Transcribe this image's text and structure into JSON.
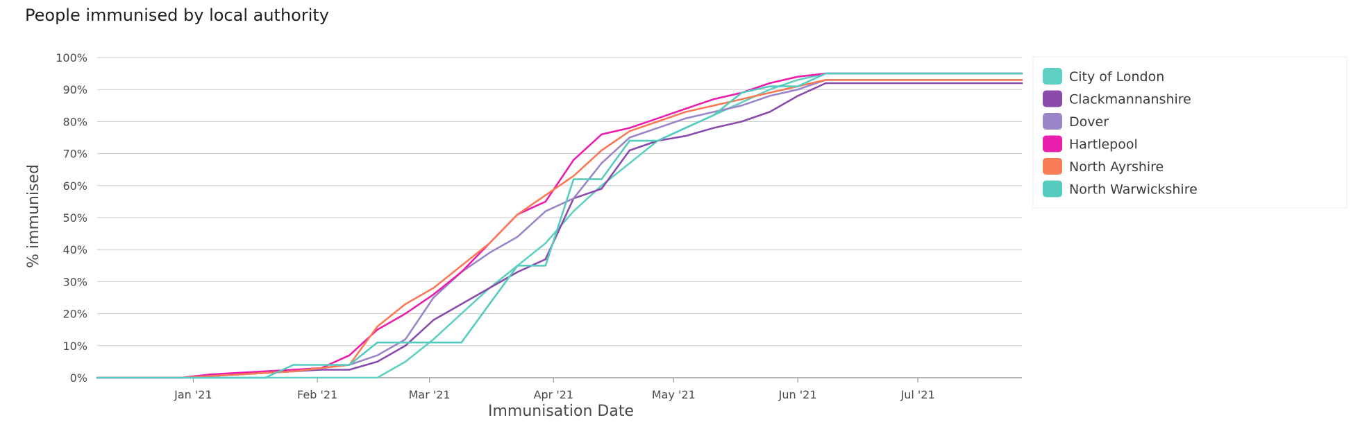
{
  "chart_data": {
    "type": "line",
    "title": "People immunised by local authority",
    "xlabel": "Immunisation Date",
    "ylabel": "% immunised",
    "x": [
      "2020-12-08",
      "2020-12-15",
      "2020-12-22",
      "2020-12-29",
      "2021-01-05",
      "2021-01-12",
      "2021-01-19",
      "2021-01-26",
      "2021-02-02",
      "2021-02-09",
      "2021-02-16",
      "2021-02-23",
      "2021-03-02",
      "2021-03-09",
      "2021-03-16",
      "2021-03-23",
      "2021-03-30",
      "2021-04-06",
      "2021-04-13",
      "2021-04-20",
      "2021-04-27",
      "2021-05-04",
      "2021-05-11",
      "2021-05-18",
      "2021-05-25",
      "2021-06-01",
      "2021-06-08",
      "2021-06-15",
      "2021-06-22",
      "2021-06-29",
      "2021-07-06",
      "2021-07-13",
      "2021-07-20",
      "2021-07-27"
    ],
    "xlim": [
      "2020-12-08",
      "2021-07-27"
    ],
    "x_ticks": [
      {
        "date": "2021-01-01",
        "label": "Jan '21"
      },
      {
        "date": "2021-02-01",
        "label": "Feb '21"
      },
      {
        "date": "2021-03-01",
        "label": "Mar '21"
      },
      {
        "date": "2021-04-01",
        "label": "Apr '21"
      },
      {
        "date": "2021-05-01",
        "label": "May '21"
      },
      {
        "date": "2021-06-01",
        "label": "Jun '21"
      },
      {
        "date": "2021-07-01",
        "label": "Jul '21"
      }
    ],
    "ylim": [
      0,
      100
    ],
    "y_ticks": [
      "0%",
      "10%",
      "20%",
      "30%",
      "40%",
      "50%",
      "60%",
      "70%",
      "80%",
      "90%",
      "100%"
    ],
    "grid": true,
    "legend": "right",
    "series": [
      {
        "name": "City of London",
        "color": "#5ECFC1",
        "values": [
          0,
          0,
          0,
          0,
          0,
          0,
          0,
          0,
          0,
          0,
          0,
          5,
          12,
          20,
          28,
          35,
          42,
          52,
          60,
          67,
          74,
          78,
          82,
          86,
          90,
          93,
          95,
          95,
          95,
          95,
          95,
          95,
          95,
          95
        ]
      },
      {
        "name": "Clackmannanshire",
        "color": "#8A4BAB",
        "values": [
          0,
          0,
          0,
          0,
          0.5,
          1,
          1.5,
          2,
          2.5,
          2.5,
          5,
          10,
          18,
          23,
          28,
          33,
          37,
          56,
          59,
          71,
          74,
          75.5,
          78,
          80,
          83,
          88,
          92,
          92,
          92,
          92,
          92,
          92,
          92,
          92
        ]
      },
      {
        "name": "Dover",
        "color": "#9B85C9",
        "values": [
          0,
          0,
          0,
          0,
          0.5,
          1,
          1.5,
          2,
          3,
          4,
          7,
          12,
          25,
          33,
          39,
          44,
          52,
          56,
          67,
          75,
          78,
          81,
          83,
          85,
          88,
          90,
          93,
          93,
          93,
          93,
          93,
          93,
          93,
          93
        ]
      },
      {
        "name": "Hartlepool",
        "color": "#E91EAD",
        "values": [
          0,
          0,
          0,
          0,
          1,
          1.5,
          2,
          2.5,
          3,
          7,
          15,
          20,
          26,
          33,
          42,
          51,
          55,
          68,
          76,
          78,
          81,
          84,
          87,
          89,
          92,
          94,
          95,
          95,
          95,
          95,
          95,
          95,
          95,
          95
        ]
      },
      {
        "name": "North Ayrshire",
        "color": "#F97A56",
        "values": [
          0,
          0,
          0,
          0,
          0.5,
          1,
          1.5,
          2,
          3,
          4,
          16,
          23,
          28,
          35,
          42,
          51,
          57,
          63,
          71,
          77,
          80,
          83,
          85,
          87,
          89,
          91,
          93,
          93,
          93,
          93,
          93,
          93,
          93,
          93
        ]
      },
      {
        "name": "North Warwickshire",
        "color": "#56CBBF",
        "values": [
          0,
          0,
          0,
          0,
          0,
          0,
          0,
          4,
          4,
          4,
          11,
          11,
          11,
          11,
          23,
          35,
          35,
          62,
          62,
          74,
          74,
          78,
          82,
          89,
          91,
          91,
          95,
          95,
          95,
          95,
          95,
          95,
          95,
          95
        ]
      }
    ]
  }
}
